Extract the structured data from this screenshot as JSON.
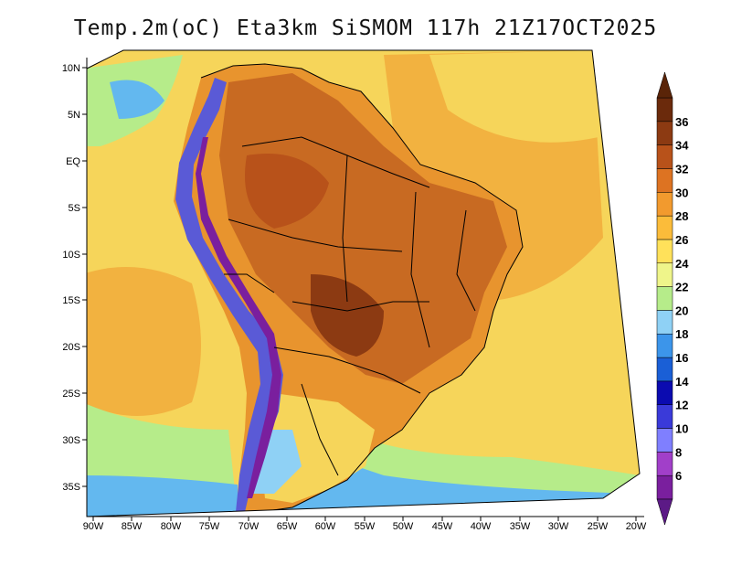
{
  "title": "Temp.2m(oC) Eta3km SiSMOM 117h 21Z17OCT2025",
  "map": {
    "lat_labels": [
      "10N",
      "5N",
      "EQ",
      "5S",
      "10S",
      "15S",
      "20S",
      "25S",
      "30S",
      "35S"
    ],
    "lon_labels": [
      "90W",
      "85W",
      "80W",
      "75W",
      "70W",
      "65W",
      "60W",
      "55W",
      "50W",
      "45W",
      "40W",
      "35W",
      "30W",
      "25W",
      "20W"
    ]
  },
  "colorbar": {
    "labels": [
      "6",
      "8",
      "10",
      "12",
      "14",
      "16",
      "18",
      "20",
      "22",
      "24",
      "26",
      "28",
      "30",
      "32",
      "34",
      "36"
    ],
    "colors": [
      "#7a1f9e",
      "#a13fc9",
      "#7f7fff",
      "#3a3ad9",
      "#0b0bb0",
      "#1a5fd6",
      "#3c95ea",
      "#8fd1f5",
      "#b6ec8a",
      "#eff58a",
      "#ffe15a",
      "#fbbc3a",
      "#f29a2e",
      "#dd7322",
      "#b8521a",
      "#8c3a12",
      "#6b2a0c"
    ],
    "under_color": "#5c1a86",
    "over_color": "#5a2408"
  },
  "legend": {
    "land_hot": "#c86a22",
    "land_warm": "#e8942e",
    "andes": "#5a5ad6",
    "ocean_warm": "#f2b240",
    "ocean_mild": "#f6d55a",
    "ocean_cool": "#aee39a",
    "ocean_cold": "#63b8ef"
  }
}
